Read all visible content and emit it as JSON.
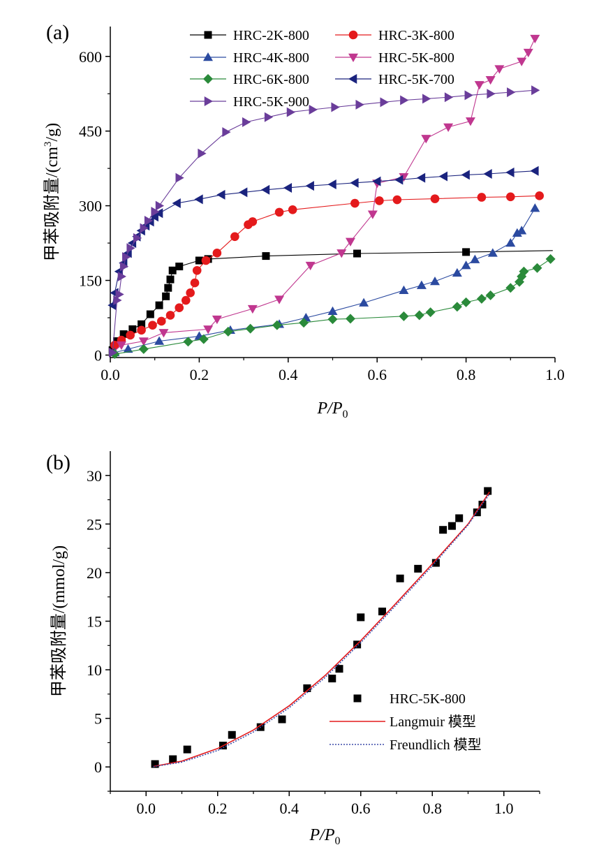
{
  "chart_data": [
    {
      "type": "line",
      "panel_label": "(a)",
      "xlabel": "P/P0",
      "xlabel_main": "P/P",
      "xlabel_sub": "0",
      "ylabel": "甲苯吸附量/(cm3/g)",
      "ylabel_pre": "甲苯吸附量/(cm",
      "ylabel_sup": "3",
      "ylabel_post": "/g)",
      "xlim": [
        0,
        1.0
      ],
      "ylim": [
        -5,
        660
      ],
      "xticks": [
        "0.0",
        "0.2",
        "0.4",
        "0.6",
        "0.8",
        "1.0"
      ],
      "yticks": [
        "0",
        "150",
        "300",
        "450",
        "600"
      ],
      "grid": false,
      "legend_position": "top",
      "series": [
        {
          "name": "HRC-2K-800",
          "color": "#000000",
          "marker": "square",
          "x": [
            0.005,
            0.015,
            0.03,
            0.05,
            0.07,
            0.09,
            0.11,
            0.125,
            0.13,
            0.135,
            0.14,
            0.155,
            0.2,
            0.22,
            0.35,
            0.555,
            0.8,
            0.995
          ],
          "y": [
            10,
            28,
            42,
            52,
            62,
            82,
            100,
            118,
            135,
            152,
            170,
            178,
            190,
            193,
            199,
            204,
            207,
            210
          ],
          "marker_idx": [
            0,
            1,
            2,
            3,
            4,
            5,
            6,
            7,
            8,
            9,
            10,
            11,
            12,
            13,
            14,
            15,
            16
          ]
        },
        {
          "name": "HRC-3K-800",
          "color": "#e41a1c",
          "marker": "circle",
          "x": [
            0.01,
            0.025,
            0.045,
            0.07,
            0.095,
            0.115,
            0.135,
            0.155,
            0.17,
            0.18,
            0.19,
            0.195,
            0.215,
            0.24,
            0.28,
            0.31,
            0.32,
            0.38,
            0.41,
            0.55,
            0.605,
            0.645,
            0.73,
            0.835,
            0.9,
            0.965
          ],
          "y": [
            20,
            30,
            40,
            50,
            60,
            68,
            80,
            95,
            110,
            125,
            145,
            170,
            190,
            205,
            238,
            262,
            268,
            287,
            292,
            305,
            310,
            312,
            314,
            317,
            318,
            320
          ]
        },
        {
          "name": "HRC-4K-800",
          "color": "#2b4aa0",
          "marker": "triangle-up",
          "x": [
            0.01,
            0.04,
            0.11,
            0.2,
            0.27,
            0.38,
            0.44,
            0.5,
            0.57,
            0.66,
            0.7,
            0.73,
            0.78,
            0.8,
            0.82,
            0.86,
            0.9,
            0.915,
            0.925,
            0.955
          ],
          "y": [
            5,
            12,
            28,
            38,
            50,
            62,
            75,
            88,
            105,
            130,
            140,
            148,
            165,
            180,
            192,
            205,
            225,
            245,
            250,
            295
          ]
        },
        {
          "name": "HRC-5K-800",
          "color": "#c0378f",
          "marker": "triangle-down",
          "x": [
            0.005,
            0.025,
            0.075,
            0.12,
            0.22,
            0.24,
            0.32,
            0.38,
            0.45,
            0.52,
            0.54,
            0.59,
            0.6,
            0.66,
            0.71,
            0.76,
            0.81,
            0.83,
            0.855,
            0.875,
            0.925,
            0.94,
            0.955
          ],
          "y": [
            5,
            20,
            28,
            45,
            52,
            72,
            93,
            112,
            180,
            205,
            228,
            283,
            345,
            358,
            435,
            458,
            470,
            543,
            553,
            575,
            590,
            608,
            636
          ],
          "marker_idx": [
            1,
            2,
            3,
            4,
            5,
            6,
            7,
            8,
            9,
            10,
            11,
            12,
            13,
            14,
            15,
            16,
            17,
            18,
            19,
            20,
            21,
            22
          ]
        },
        {
          "name": "HRC-6K-800",
          "color": "#2a8a3a",
          "marker": "diamond",
          "x": [
            0.01,
            0.03,
            0.075,
            0.13,
            0.175,
            0.21,
            0.265,
            0.315,
            0.375,
            0.435,
            0.5,
            0.54,
            0.66,
            0.695,
            0.72,
            0.78,
            0.8,
            0.835,
            0.855,
            0.9,
            0.92,
            0.925,
            0.93,
            0.96,
            0.99
          ],
          "y": [
            2,
            5,
            12,
            20,
            27,
            32,
            47,
            53,
            60,
            65,
            72,
            73,
            78,
            80,
            86,
            97,
            106,
            113,
            120,
            135,
            147,
            158,
            168,
            175,
            193
          ],
          "marker_idx": [
            0,
            2,
            4,
            5,
            6,
            7,
            8,
            9,
            10,
            11,
            12,
            13,
            14,
            15,
            16,
            17,
            18,
            19,
            20,
            21,
            22,
            23,
            24
          ]
        },
        {
          "name": "HRC-5K-700",
          "color": "#1a237e",
          "marker": "triangle-left",
          "x": [
            0.005,
            0.01,
            0.02,
            0.03,
            0.04,
            0.05,
            0.06,
            0.07,
            0.08,
            0.09,
            0.1,
            0.11,
            0.15,
            0.2,
            0.25,
            0.3,
            0.35,
            0.4,
            0.45,
            0.5,
            0.55,
            0.6,
            0.65,
            0.7,
            0.75,
            0.8,
            0.85,
            0.9,
            0.955
          ],
          "y": [
            100,
            125,
            168,
            185,
            205,
            225,
            238,
            250,
            260,
            268,
            278,
            285,
            305,
            313,
            322,
            327,
            332,
            336,
            340,
            343,
            346,
            349,
            352,
            356,
            359,
            362,
            364,
            367,
            370
          ]
        },
        {
          "name": "HRC-5K-900",
          "color": "#6a3d9a",
          "marker": "triangle-right",
          "x": [
            0.005,
            0.015,
            0.02,
            0.025,
            0.03,
            0.035,
            0.045,
            0.06,
            0.075,
            0.085,
            0.1,
            0.11,
            0.155,
            0.205,
            0.26,
            0.305,
            0.355,
            0.405,
            0.455,
            0.505,
            0.56,
            0.615,
            0.66,
            0.71,
            0.76,
            0.805,
            0.855,
            0.9,
            0.955
          ],
          "y": [
            5,
            110,
            122,
            158,
            178,
            197,
            215,
            235,
            255,
            270,
            288,
            300,
            356,
            405,
            448,
            468,
            478,
            488,
            493,
            498,
            503,
            508,
            512,
            515,
            518,
            522,
            525,
            528,
            532
          ]
        }
      ]
    },
    {
      "type": "scatter",
      "panel_label": "(b)",
      "xlabel": "P/P0",
      "xlabel_main": "P/P",
      "xlabel_sub": "0",
      "ylabel": "甲苯吸附量/(mmol/g)",
      "xlim": [
        -0.1,
        1.1
      ],
      "ylim": [
        -2.5,
        32.5
      ],
      "xticks": [
        "0.0",
        "0.2",
        "0.4",
        "0.6",
        "0.8",
        "1.0"
      ],
      "yticks": [
        "0",
        "5",
        "10",
        "15",
        "20",
        "25",
        "30"
      ],
      "grid": false,
      "legend_position": "bottom-right",
      "series": [
        {
          "name": "HRC-5K-800",
          "color": "#000000",
          "marker": "square",
          "x": [
            0.025,
            0.075,
            0.115,
            0.215,
            0.24,
            0.32,
            0.38,
            0.45,
            0.52,
            0.54,
            0.59,
            0.6,
            0.66,
            0.71,
            0.76,
            0.81,
            0.83,
            0.855,
            0.875,
            0.925,
            0.94,
            0.955
          ],
          "y": [
            0.3,
            0.8,
            1.8,
            2.2,
            3.3,
            4.1,
            4.9,
            8.1,
            9.1,
            10.1,
            12.6,
            15.4,
            16.0,
            19.4,
            20.4,
            21.0,
            24.4,
            24.8,
            25.6,
            26.2,
            27.0,
            28.4
          ]
        },
        {
          "name": "Langmuir 模型",
          "color": "#e41a1c",
          "line": "solid",
          "x": [
            0.02,
            0.1,
            0.2,
            0.3,
            0.4,
            0.5,
            0.6,
            0.7,
            0.8,
            0.9,
            0.96
          ],
          "y": [
            0.05,
            0.6,
            1.9,
            3.8,
            6.3,
            9.4,
            13.0,
            16.9,
            20.9,
            25.0,
            28.3
          ]
        },
        {
          "name": "Freundlich 模型",
          "color": "#3b4aa8",
          "line": "dotted",
          "x": [
            0.02,
            0.1,
            0.2,
            0.3,
            0.4,
            0.5,
            0.6,
            0.7,
            0.8,
            0.9,
            0.96
          ],
          "y": [
            0.03,
            0.5,
            1.7,
            3.6,
            6.1,
            9.2,
            12.8,
            16.7,
            20.7,
            24.9,
            28.1
          ]
        }
      ]
    }
  ]
}
